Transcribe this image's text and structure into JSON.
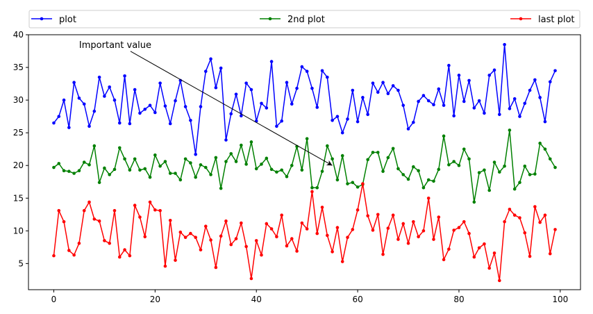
{
  "chart_data": {
    "type": "line",
    "title": "",
    "xlabel": "",
    "ylabel": "",
    "xlim": [
      -5,
      104
    ],
    "ylim": [
      1,
      40
    ],
    "xticks": [
      0,
      20,
      40,
      60,
      80,
      100
    ],
    "yticks": [
      5,
      10,
      15,
      20,
      25,
      30,
      35,
      40
    ],
    "grid": false,
    "legend_placement": "top, above plot, expanded",
    "x": [
      0,
      1,
      2,
      3,
      4,
      5,
      6,
      7,
      8,
      9,
      10,
      11,
      12,
      13,
      14,
      15,
      16,
      17,
      18,
      19,
      20,
      21,
      22,
      23,
      24,
      25,
      26,
      27,
      28,
      29,
      30,
      31,
      32,
      33,
      34,
      35,
      36,
      37,
      38,
      39,
      40,
      41,
      42,
      43,
      44,
      45,
      46,
      47,
      48,
      49,
      50,
      51,
      52,
      53,
      54,
      55,
      56,
      57,
      58,
      59,
      60,
      61,
      62,
      63,
      64,
      65,
      66,
      67,
      68,
      69,
      70,
      71,
      72,
      73,
      74,
      75,
      76,
      77,
      78,
      79,
      80,
      81,
      82,
      83,
      84,
      85,
      86,
      87,
      88,
      89,
      90,
      91,
      92,
      93,
      94,
      95,
      96,
      97,
      98,
      99
    ],
    "series": [
      {
        "name": "plot",
        "color": "#0000ff",
        "values": [
          26.5,
          27.5,
          30.0,
          25.8,
          32.7,
          30.3,
          29.4,
          26.0,
          28.3,
          33.5,
          30.6,
          32.0,
          30.0,
          26.5,
          33.7,
          26.4,
          31.6,
          28.0,
          28.6,
          29.2,
          28.1,
          32.6,
          29.1,
          26.4,
          29.9,
          33.0,
          29.0,
          26.9,
          21.7,
          29.0,
          34.4,
          36.3,
          31.9,
          34.9,
          23.9,
          27.9,
          30.9,
          27.6,
          32.6,
          31.6,
          26.8,
          29.5,
          28.8,
          35.9,
          26.0,
          26.8,
          32.7,
          29.4,
          31.8,
          35.1,
          34.4,
          31.8,
          28.9,
          34.5,
          33.5,
          26.9,
          27.5,
          25.0,
          27.1,
          31.5,
          26.7,
          30.4,
          27.8,
          32.6,
          31.2,
          32.7,
          31.0,
          32.2,
          31.5,
          29.2,
          25.6,
          26.6,
          29.8,
          30.7,
          29.9,
          29.3,
          31.7,
          29.2,
          35.3,
          27.6,
          33.8,
          29.8,
          33.0,
          28.8,
          29.9,
          28.0,
          33.8,
          34.6,
          27.8,
          38.5,
          28.7,
          30.2,
          27.5,
          29.5,
          31.5,
          33.1,
          30.4,
          26.7,
          32.8,
          34.5
        ]
      },
      {
        "name": "2nd plot",
        "color": "#008000",
        "values": [
          19.7,
          20.3,
          19.2,
          19.1,
          18.8,
          19.2,
          20.5,
          20.1,
          23.0,
          17.4,
          19.6,
          18.6,
          19.4,
          22.7,
          21.0,
          19.3,
          21.0,
          19.3,
          19.5,
          18.2,
          21.6,
          19.9,
          20.6,
          18.8,
          18.8,
          17.8,
          21.0,
          20.4,
          18.2,
          20.1,
          19.7,
          18.6,
          21.2,
          16.5,
          20.6,
          21.8,
          20.6,
          23.1,
          20.2,
          23.6,
          19.5,
          20.2,
          21.1,
          19.4,
          19.0,
          19.3,
          18.3,
          20.0,
          22.9,
          19.3,
          24.1,
          16.6,
          16.6,
          19.1,
          23.0,
          21.0,
          17.8,
          21.5,
          17.2,
          17.4,
          16.7,
          17.1,
          20.9,
          22.0,
          22.0,
          19.1,
          21.2,
          22.6,
          19.5,
          18.6,
          17.9,
          19.8,
          19.2,
          16.6,
          17.8,
          17.6,
          19.4,
          24.5,
          20.1,
          20.6,
          20.0,
          22.5,
          21.0,
          14.4,
          18.9,
          19.3,
          16.2,
          20.5,
          19.0,
          19.9,
          25.4,
          16.4,
          17.4,
          19.9,
          18.6,
          18.7,
          23.4,
          22.5,
          21.0,
          19.7
        ]
      },
      {
        "name": "last plot",
        "color": "#ff0000",
        "values": [
          6.2,
          13.1,
          11.4,
          7.0,
          6.3,
          8.1,
          13.1,
          14.4,
          11.8,
          11.5,
          8.5,
          8.1,
          13.1,
          6.0,
          7.1,
          6.2,
          13.9,
          12.1,
          9.1,
          14.4,
          13.2,
          13.1,
          4.6,
          11.6,
          5.5,
          9.8,
          9.0,
          9.6,
          9.0,
          7.1,
          10.7,
          8.6,
          4.4,
          9.2,
          11.5,
          7.9,
          8.8,
          11.2,
          7.6,
          2.7,
          8.5,
          6.3,
          11.1,
          10.3,
          9.1,
          12.4,
          7.7,
          8.8,
          6.9,
          11.2,
          10.3,
          16.0,
          9.6,
          13.6,
          9.3,
          6.8,
          10.5,
          5.3,
          9.0,
          10.2,
          13.2,
          17.2,
          12.3,
          10.1,
          12.5,
          6.4,
          10.4,
          12.4,
          8.7,
          11.1,
          8.1,
          11.4,
          9.1,
          10.0,
          15.0,
          8.7,
          12.1,
          5.6,
          7.2,
          10.1,
          10.5,
          11.4,
          9.6,
          6.0,
          7.4,
          8.0,
          4.3,
          6.6,
          2.4,
          11.4,
          13.3,
          12.4,
          12.0,
          9.7,
          6.1,
          13.7,
          11.3,
          12.4,
          6.5,
          10.2
        ]
      }
    ],
    "annotations": [
      {
        "text": "Important value",
        "text_pos": [
          5,
          38
        ],
        "xy": [
          55,
          20
        ]
      }
    ]
  }
}
